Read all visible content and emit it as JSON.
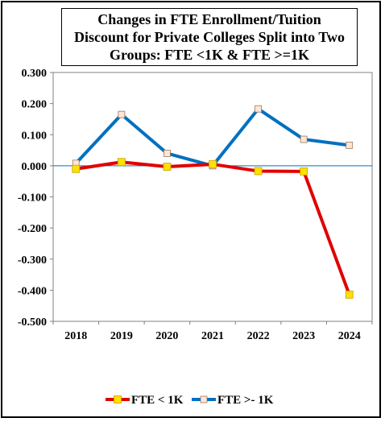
{
  "chart_data": {
    "type": "line",
    "title_lines": [
      "Changes in FTE Enrollment/Tuition",
      "Discount for Private Colleges Split into Two",
      "Groups: FTE <1K & FTE >=1K"
    ],
    "categories": [
      "2018",
      "2019",
      "2020",
      "2021",
      "2022",
      "2023",
      "2024"
    ],
    "y_tick_labels": [
      "0.300",
      "0.200",
      "0.100",
      "0.000",
      "-0.100",
      "-0.200",
      "-0.300",
      "-0.400",
      "-0.500"
    ],
    "ylim": [
      -0.5,
      0.3
    ],
    "grid": false,
    "legend_position": "bottom",
    "series": [
      {
        "name": "FTE < 1K",
        "color": "#e00000",
        "marker": "square",
        "marker_fill": "#ffe000",
        "values": [
          -0.01,
          0.012,
          -0.003,
          0.005,
          -0.017,
          -0.018,
          -0.414
        ]
      },
      {
        "name": "FTE >- 1K",
        "color": "#0070c0",
        "marker": "square",
        "marker_fill": "#fde6d8",
        "values": [
          0.008,
          0.165,
          0.04,
          0.0,
          0.183,
          0.085,
          0.066
        ]
      }
    ],
    "zero_line_color": "#0070c0"
  }
}
